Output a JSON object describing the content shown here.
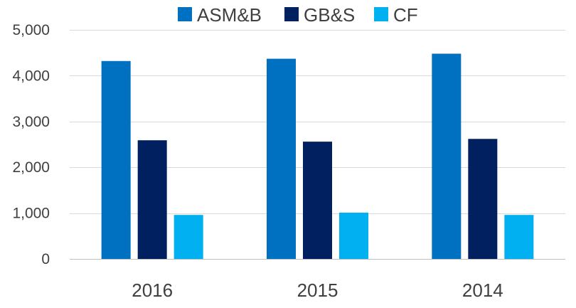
{
  "colors": {
    "ASM&B": "#0070c0",
    "GB&S": "#002060",
    "CF": "#00b0f0"
  },
  "chart_data": {
    "type": "bar",
    "categories": [
      "2016",
      "2015",
      "2014"
    ],
    "series": [
      {
        "name": "ASM&B",
        "values": [
          4320,
          4370,
          4480
        ]
      },
      {
        "name": "GB&S",
        "values": [
          2590,
          2560,
          2620
        ]
      },
      {
        "name": "CF",
        "values": [
          960,
          1010,
          960
        ]
      }
    ],
    "ylim": [
      0,
      5000
    ],
    "yticks": [
      0,
      1000,
      2000,
      3000,
      4000,
      5000
    ],
    "ytick_labels": [
      "0",
      "1,000",
      "2,000",
      "3,000",
      "4,000",
      "5,000"
    ],
    "grid": true,
    "legend_position": "top"
  }
}
